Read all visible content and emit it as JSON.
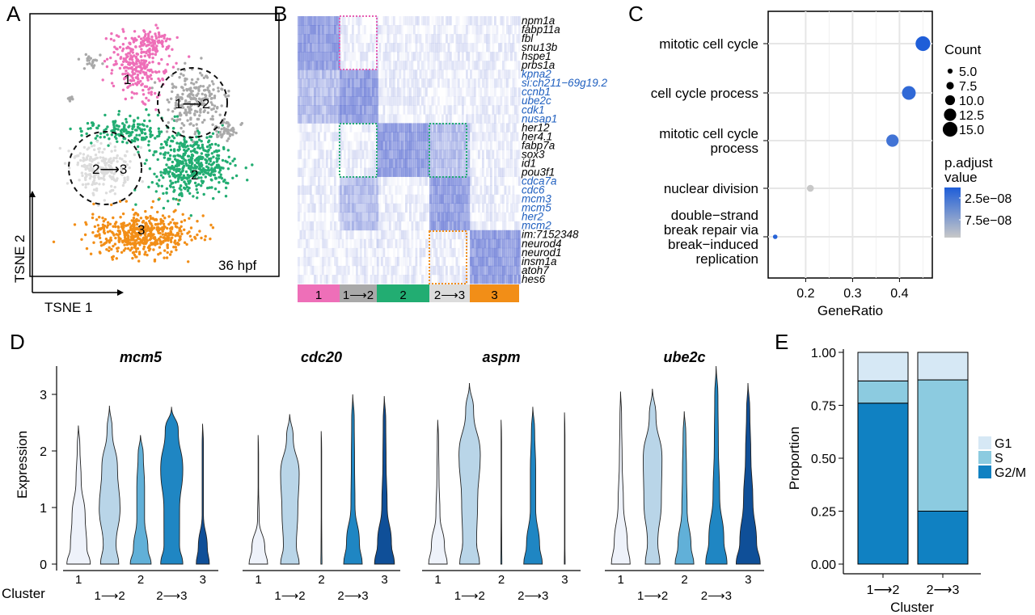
{
  "panel_labels": [
    "A",
    "B",
    "C",
    "D",
    "E"
  ],
  "colors": {
    "cluster1": "#ee6fb8",
    "cluster12": "#a9a9a9",
    "cluster2": "#22ad72",
    "cluster23": "#dcdcdc",
    "cluster3": "#f28e17",
    "padj_low": "#1f5ed8",
    "padj_high": "#c8c8c8",
    "heat_high": "#4f63cf",
    "g1": "#d6e8f5",
    "s": "#8ccbe0",
    "g2m": "#1081c2",
    "v1": "#eef2fa",
    "v12": "#b9d5e8",
    "v2": "#61b0d8",
    "v23": "#1f86c3",
    "v3": "#0f4f98"
  },
  "panelA": {
    "xlabel": "TSNE 1",
    "ylabel": "TSNE 2",
    "stage": "36 hpf",
    "cluster_labels": [
      "1",
      "1⟶2",
      "2",
      "2⟶3",
      "3"
    ]
  },
  "panelB": {
    "genes": [
      {
        "name": "npm1a",
        "highlight": false
      },
      {
        "name": "fabp11a",
        "highlight": false
      },
      {
        "name": "fbl",
        "highlight": false
      },
      {
        "name": "snu13b",
        "highlight": false
      },
      {
        "name": "hspe1",
        "highlight": false
      },
      {
        "name": "prbs1a",
        "highlight": false
      },
      {
        "name": "kpna2",
        "highlight": true
      },
      {
        "name": "si:ch211−69g19.2",
        "highlight": true
      },
      {
        "name": "ccnb1",
        "highlight": true
      },
      {
        "name": "ube2c",
        "highlight": true
      },
      {
        "name": "cdk1",
        "highlight": true
      },
      {
        "name": "nusap1",
        "highlight": true
      },
      {
        "name": "her12",
        "highlight": false
      },
      {
        "name": "her4.1",
        "highlight": false
      },
      {
        "name": "fabp7a",
        "highlight": false
      },
      {
        "name": "sox3",
        "highlight": false
      },
      {
        "name": "id1",
        "highlight": false
      },
      {
        "name": "pou3f1",
        "highlight": false
      },
      {
        "name": "cdca7a",
        "highlight": true
      },
      {
        "name": "cdc6",
        "highlight": true
      },
      {
        "name": "mcm3",
        "highlight": true
      },
      {
        "name": "mcm5",
        "highlight": true
      },
      {
        "name": "her2",
        "highlight": true
      },
      {
        "name": "mcm2",
        "highlight": true
      },
      {
        "name": "im:7152348",
        "highlight": false
      },
      {
        "name": "neurod4",
        "highlight": false
      },
      {
        "name": "neurod1",
        "highlight": false
      },
      {
        "name": "insm1a",
        "highlight": false
      },
      {
        "name": "atoh7",
        "highlight": false
      },
      {
        "name": "hes6",
        "highlight": false
      }
    ],
    "clusters": [
      "1",
      "1⟶2",
      "2",
      "2⟶3",
      "3"
    ]
  },
  "chart_data": [
    {
      "type": "scatter",
      "panel": "C",
      "xlabel": "GeneRatio",
      "xlim": [
        0.12,
        0.47
      ],
      "xticks": [
        0.2,
        0.3,
        0.4
      ],
      "categories": [
        "mitotic cell cycle",
        "cell cycle process",
        "mitotic cell cycle process",
        "nuclear division",
        "double−strand break repair via break−induced replication"
      ],
      "category_lines": [
        [
          "mitotic cell cycle"
        ],
        [
          "cell cycle process"
        ],
        [
          "mitotic cell cycle",
          "process"
        ],
        [
          "nuclear division"
        ],
        [
          "double−strand",
          "break repair via",
          "break−induced",
          "replication"
        ]
      ],
      "gene_ratio": [
        0.45,
        0.42,
        0.385,
        0.21,
        0.135
      ],
      "count": [
        15,
        14,
        12.5,
        7,
        4.5
      ],
      "p_adjust": [
        1e-08,
        2e-08,
        3e-08,
        1.1e-07,
        1.5e-08
      ],
      "size_legend_title": "Count",
      "size_legend": [
        "5.0",
        "7.5",
        "10.0",
        "12.5",
        "15.0"
      ],
      "color_legend_title": [
        "p.adjust",
        "value"
      ],
      "color_legend_ticks": [
        "2.5e−08",
        "7.5e−08"
      ]
    },
    {
      "type": "violin",
      "panel": "D",
      "ylabel": "Expression",
      "ylim": [
        0,
        3.5
      ],
      "yticks": [
        "0",
        "1",
        "2",
        "3"
      ],
      "cluster_axis_label": "Cluster",
      "categories": [
        "1",
        "1⟶2",
        "2",
        "2⟶3",
        "3"
      ],
      "genes": [
        "mcm5",
        "cdc20",
        "aspm",
        "ube2c"
      ],
      "max_expression": [
        [
          2.45,
          2.8,
          2.28,
          2.78,
          2.48
        ],
        [
          2.28,
          2.65,
          2.35,
          3.0,
          2.97
        ],
        [
          2.55,
          3.2,
          2.55,
          2.78,
          2.68
        ],
        [
          3.05,
          3.1,
          2.7,
          3.5,
          3.2
        ]
      ]
    },
    {
      "type": "stacked_bar",
      "panel": "E",
      "xlabel": "Cluster",
      "ylabel": "Proportion",
      "ylim": [
        0,
        1
      ],
      "yticks": [
        "0.00",
        "0.25",
        "0.50",
        "0.75",
        "1.00"
      ],
      "categories": [
        "1⟶2",
        "2⟶3"
      ],
      "series": [
        {
          "name": "G2/M",
          "values": [
            0.76,
            0.25
          ]
        },
        {
          "name": "S",
          "values": [
            0.105,
            0.62
          ]
        },
        {
          "name": "G1",
          "values": [
            0.135,
            0.13
          ]
        }
      ],
      "legend": [
        "G1",
        "S",
        "G2/M"
      ]
    }
  ]
}
